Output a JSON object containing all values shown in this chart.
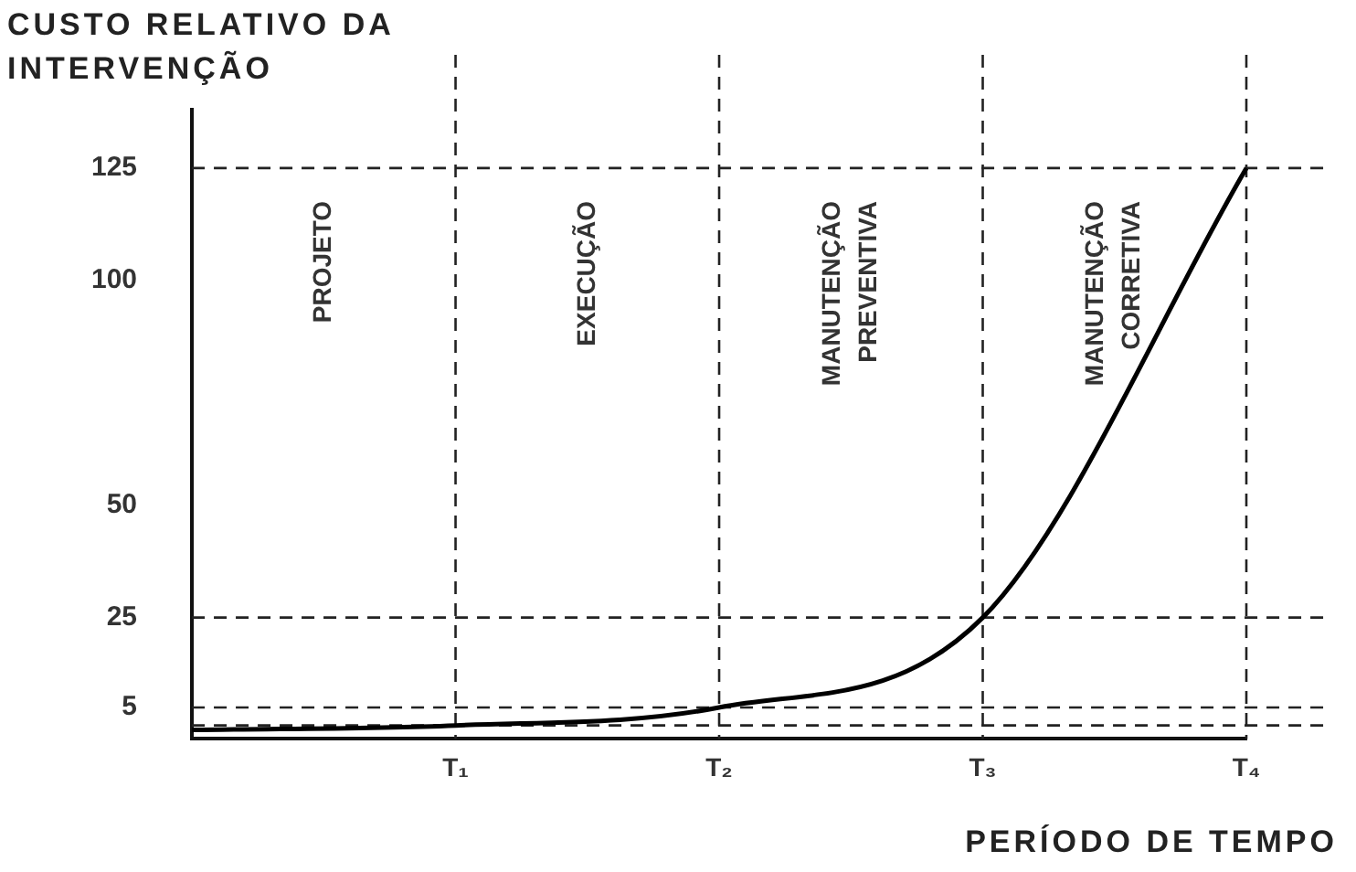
{
  "chart_data": {
    "type": "line",
    "ylabel": "CUSTO RELATIVO DA\nINTERVENÇÃO",
    "xlabel": "PERÍODO DE TEMPO",
    "categories": [
      null,
      "T₁",
      "T₂",
      "T₃",
      "T₄"
    ],
    "series": [
      {
        "color": "#000000",
        "values": [
          0,
          1,
          5,
          25,
          125
        ]
      }
    ],
    "ylim": [
      -2,
      138
    ],
    "yticks": [
      5,
      25,
      50,
      100,
      125
    ],
    "annotations": [
      "PROJETO",
      "EXECUÇÃO",
      "MANUTENÇÃO\nPREVENTIVA",
      "MANUTENÇÃO\nCORRETIVA"
    ],
    "ref_lines": [
      {
        "axis": "x",
        "value": "T₁",
        "line_style": "dashed"
      },
      {
        "axis": "x",
        "value": "T₂",
        "line_style": "dashed"
      },
      {
        "axis": "x",
        "value": "T₃",
        "line_style": "dashed"
      },
      {
        "axis": "x",
        "value": "T₄",
        "line_style": "dashed"
      },
      {
        "axis": "y",
        "value": 1,
        "line_style": "dashed"
      },
      {
        "axis": "y",
        "value": 5,
        "line_style": "dashed"
      },
      {
        "axis": "y",
        "value": 25,
        "line_style": "dashed"
      },
      {
        "axis": "y",
        "value": 125,
        "line_style": "dashed"
      }
    ],
    "grid": false,
    "legend": false,
    "marker": "none",
    "line_style": "solid"
  }
}
